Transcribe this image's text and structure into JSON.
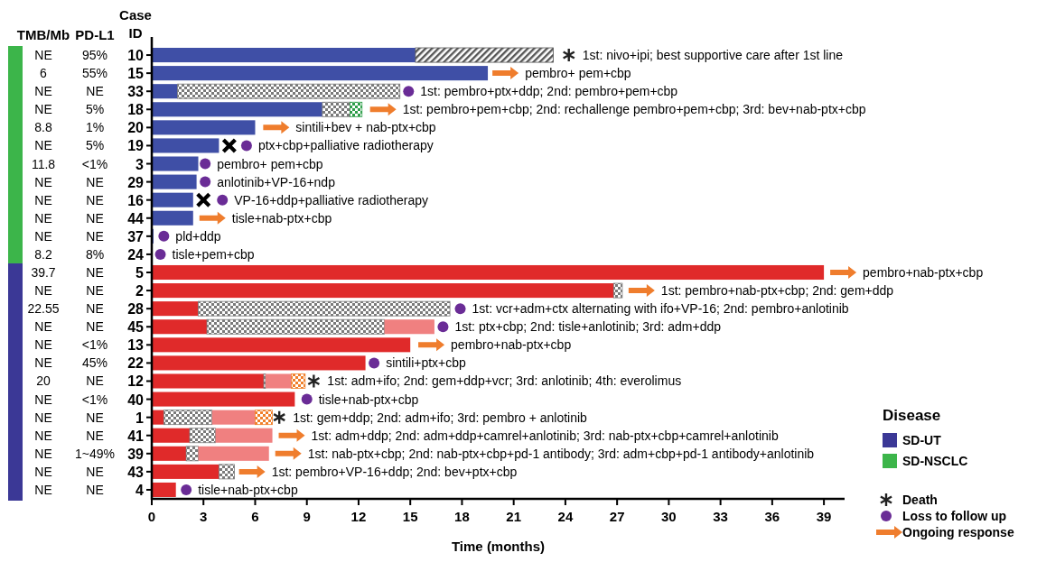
{
  "chart_data": {
    "type": "bar",
    "orientation": "horizontal",
    "stacked": true,
    "xlabel": "Time (months)",
    "ylabel": "Case ID",
    "legend_title": "Disease",
    "legend": "right",
    "xlim": [
      0,
      40.2
    ],
    "xticks": [
      0,
      3,
      6,
      9,
      12,
      15,
      18,
      21,
      24,
      27,
      30,
      33,
      36,
      39
    ],
    "categories": [
      "10",
      "15",
      "33",
      "18",
      "20",
      "19",
      "3",
      "29",
      "16",
      "44",
      "37",
      "24",
      "5",
      "2",
      "28",
      "45",
      "13",
      "22",
      "12",
      "40",
      "1",
      "41",
      "39",
      "43",
      "4"
    ],
    "series": [
      {
        "colors": [
          "#3f4fa6",
          "#3f4fa6",
          "#3f4fa6",
          "#3f4fa6",
          "#3f4fa6",
          "#3f4fa6",
          "#3f4fa6",
          "#3f4fa6",
          "#3f4fa6",
          "#3f4fa6",
          "#3f4fa6",
          null,
          "#e02a2a",
          "#e02a2a",
          "#e02a2a",
          "#e02a2a",
          "#e02a2a",
          "#e02a2a",
          "#e02a2a",
          "#e02a2a",
          "#e02a2a",
          "#e02a2a",
          "#e02a2a",
          "#e02a2a",
          "#e02a2a"
        ],
        "values": [
          15.3,
          19.5,
          1.5,
          9.9,
          6.0,
          3.9,
          2.7,
          2.6,
          2.4,
          2.4,
          0.1,
          null,
          39.0,
          26.8,
          2.7,
          3.2,
          15.0,
          12.4,
          6.5,
          8.3,
          0.7,
          2.2,
          2.0,
          3.9,
          1.4
        ]
      },
      {
        "color": "#555555",
        "values": [
          8.0,
          null,
          null,
          null,
          null,
          null,
          null,
          null,
          null,
          null,
          null,
          null,
          null,
          null,
          null,
          null,
          null,
          null,
          null,
          null,
          null,
          null,
          null,
          null,
          null
        ]
      },
      {
        "color": "#7a7a7a",
        "values": [
          null,
          null,
          12.9,
          1.6,
          null,
          null,
          null,
          null,
          null,
          null,
          null,
          null,
          null,
          0.5,
          14.6,
          10.3,
          null,
          null,
          0.1,
          null,
          2.8,
          1.5,
          0.7,
          0.9,
          null
        ]
      },
      {
        "color": "#f08080",
        "values": [
          null,
          null,
          null,
          null,
          null,
          null,
          null,
          null,
          null,
          null,
          null,
          null,
          null,
          null,
          null,
          2.9,
          null,
          null,
          1.5,
          null,
          2.5,
          3.3,
          4.1,
          null,
          null
        ]
      },
      {
        "color": "#2e9e4a",
        "values": [
          null,
          null,
          null,
          0.7,
          null,
          null,
          null,
          null,
          null,
          null,
          null,
          null,
          null,
          null,
          null,
          null,
          null,
          null,
          null,
          null,
          null,
          null,
          null,
          null,
          null
        ]
      },
      {
        "color": "#f07f2a",
        "values": [
          null,
          null,
          null,
          null,
          null,
          null,
          null,
          null,
          null,
          null,
          null,
          null,
          null,
          null,
          null,
          null,
          null,
          null,
          0.8,
          null,
          1.0,
          null,
          null,
          null,
          null
        ]
      },
      {
        "type": "scatter",
        "marker": "cross",
        "color": "#000000",
        "x": [
          "19",
          "16"
        ],
        "values": [
          4.5,
          3.0
        ]
      },
      {
        "type": "scatter",
        "name": "Death",
        "marker": "cross",
        "color": "#222222",
        "x": [
          "10",
          "12",
          "1"
        ],
        "values": [
          24.2,
          9.4,
          7.4
        ]
      },
      {
        "type": "scatter",
        "name": "Loss to follow up",
        "marker": "circle",
        "color": "#6a2c96",
        "x": [
          "33",
          "19",
          "3",
          "29",
          "16",
          "37",
          "24",
          "28",
          "45",
          "22",
          "40",
          "4"
        ],
        "values": [
          14.9,
          5.5,
          3.1,
          3.1,
          4.1,
          0.7,
          0.5,
          17.9,
          16.9,
          12.9,
          9.0,
          2.0
        ]
      },
      {
        "type": "scatter",
        "name": "Ongoing response",
        "color": "#ef7d2d",
        "x": [
          "15",
          "18",
          "20",
          "44",
          "5",
          "2",
          "13",
          "41",
          "39",
          "43"
        ],
        "values": [
          20.5,
          13.4,
          7.2,
          3.5,
          40.1,
          28.4,
          16.2,
          8.1,
          7.9,
          5.8
        ]
      }
    ],
    "annotations": [
      "TMB/Mb",
      "PD-L1",
      "NE",
      "95%",
      "6",
      "55%",
      "NE",
      "NE",
      "NE",
      "5%",
      "8.8",
      "1%",
      "NE",
      "5%",
      "11.8",
      "<1%",
      "NE",
      "NE",
      "NE",
      "NE",
      "NE",
      "NE",
      "NE",
      "NE",
      "8.2",
      "8%",
      "39.7",
      "NE",
      "NE",
      "NE",
      "22.55",
      "NE",
      "NE",
      "NE",
      "NE",
      "<1%",
      "NE",
      "45%",
      "20",
      "NE",
      "NE",
      "<1%",
      "NE",
      "NE",
      "NE",
      "NE",
      "NE",
      "1~49%",
      "NE",
      "NE",
      "NE",
      "NE",
      "SD-UT",
      "SD-NSCLC",
      "1st: nivo+ipi; best supportive care after 1st line",
      "pembro+ pem+cbp",
      "1st: pembro+ptx+ddp; 2nd: pembro+pem+cbp",
      "1st: pembro+pem+cbp; 2nd: rechallenge pembro+pem+cbp; 3rd: bev+nab-ptx+cbp",
      "sintili+bev + nab-ptx+cbp",
      "ptx+cbp+palliative radiotherapy",
      "pembro+ pem+cbp",
      "anlotinib+VP-16+ndp",
      "VP-16+ddp+palliative radiotherapy",
      "tisle+nab-ptx+cbp",
      "pld+ddp",
      "tisle+pem+cbp",
      "pembro+nab-ptx+cbp",
      "1st: pembro+nab-ptx+cbp; 2nd: gem+ddp",
      "1st: vcr+adm+ctx alternating with ifo+VP-16; 2nd: pembro+anlotinib",
      "1st: ptx+cbp; 2nd: tisle+anlotinib; 3rd: adm+ddp",
      "pembro+nab-ptx+cbp",
      "sintili+ptx+cbp",
      "1st: adm+ifo; 2nd: gem+ddp+vcr; 3rd: anlotinib; 4th: everolimus",
      "tisle+nab-ptx+cbp",
      "1st: gem+ddp; 2nd: adm+ifo; 3rd: pembro + anlotinib",
      "1st: adm+ddp; 2nd: adm+ddp+camrel+anlotinib; 3rd: nab-ptx+cbp+camrel+anlotinib",
      "1st: nab-ptx+cbp; 2nd: nab-ptx+cbp+pd-1 antibody; 3rd: adm+cbp+pd-1 antibody+anlotinib",
      "1st: pembro+VP-16+ddp; 2nd: bev+ptx+cbp",
      "tisle+nab-ptx+cbp"
    ]
  }
}
